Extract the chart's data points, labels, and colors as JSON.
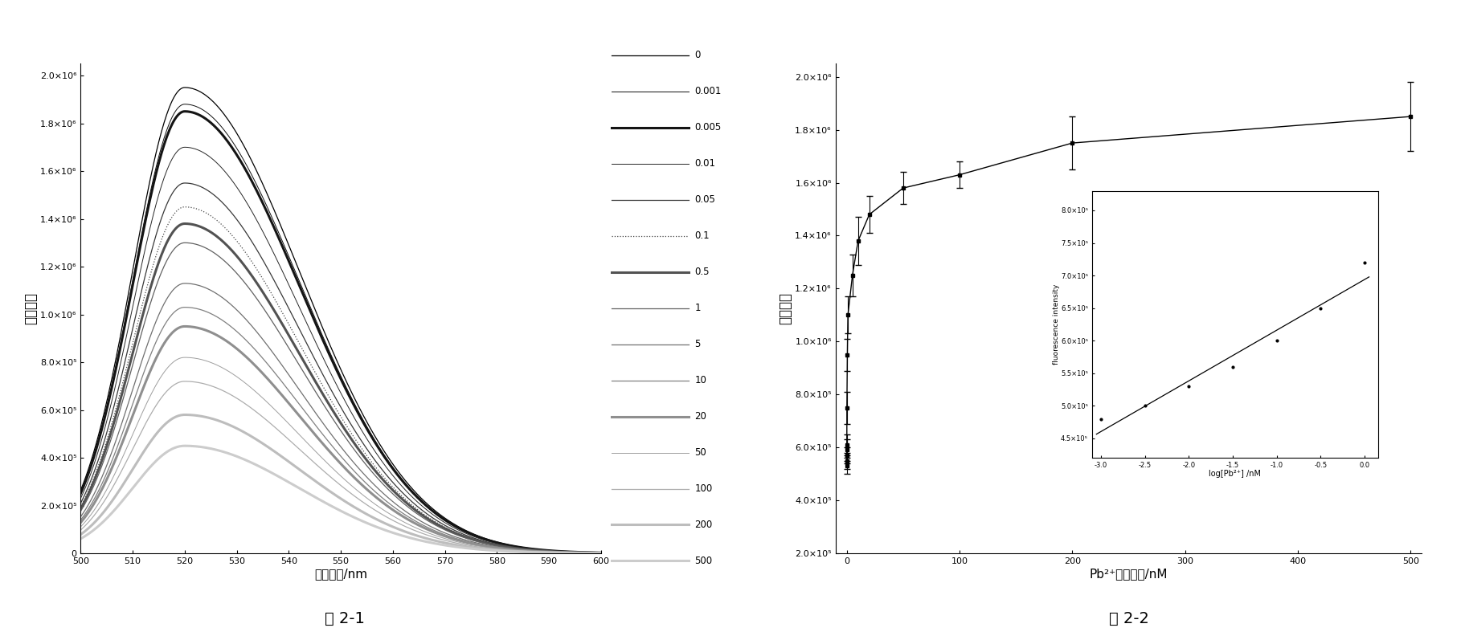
{
  "fig1_title": "图 2-1",
  "fig2_title": "图 2-2",
  "xlabel1": "荧光波长/nm",
  "ylabel1": "荧光强度",
  "xlabel2": "Pb²⁺离子浓度/nM",
  "ylabel2": "荧光强度",
  "legend_labels": [
    "0",
    "0.001",
    "0.005",
    "0.01",
    "0.05",
    "0.1",
    "0.5",
    "1",
    "5",
    "10",
    "20",
    "50",
    "100",
    "200",
    "500"
  ],
  "peak_values": [
    1950000.0,
    1880000.0,
    1850000.0,
    1700000.0,
    1550000.0,
    1450000.0,
    1380000.0,
    1300000.0,
    1130000.0,
    1030000.0,
    950000.0,
    820000.0,
    720000.0,
    580000.0,
    450000.0
  ],
  "y1ticks": [
    0.0,
    200000.0,
    400000.0,
    600000.0,
    800000.0,
    1000000.0,
    1200000.0,
    1400000.0,
    1600000.0,
    1800000.0,
    2000000.0
  ],
  "y1tick_labels": [
    "0",
    "2.0×10⁵",
    "4.0×10⁵",
    "6.0×10⁵",
    "8.0×10⁵",
    "1.0×10⁶",
    "1.2×10⁶",
    "1.4×10⁶",
    "1.6×10⁶",
    "1.8×10⁶",
    "2.0×10⁶"
  ],
  "y2ticks": [
    200000.0,
    400000.0,
    600000.0,
    800000.0,
    1000000.0,
    1200000.0,
    1400000.0,
    1600000.0,
    1800000.0,
    2000000.0
  ],
  "y2tick_labels": [
    "2.0×10⁵",
    "4.0×10⁵",
    "6.0×10⁵",
    "8.0×10⁵",
    "1.0×10⁶",
    "1.2×10⁶",
    "1.4×10⁶",
    "1.6×10⁶",
    "1.8×10⁶",
    "2.0×10⁶"
  ],
  "conc_points": [
    0,
    0.001,
    0.005,
    0.01,
    0.05,
    0.1,
    0.5,
    1,
    5,
    10,
    20,
    50,
    100,
    200,
    500
  ],
  "flu_values": [
    530000.0,
    550000.0,
    570000.0,
    590000.0,
    610000.0,
    750000.0,
    950000.0,
    1100000.0,
    1250000.0,
    1380000.0,
    1480000.0,
    1580000.0,
    1630000.0,
    1750000.0,
    1850000.0
  ],
  "flu_errors": [
    30000.0,
    30000.0,
    30000.0,
    40000.0,
    40000.0,
    60000.0,
    60000.0,
    70000.0,
    80000.0,
    90000.0,
    70000.0,
    60000.0,
    50000.0,
    100000.0,
    130000.0
  ],
  "inset_log_x": [
    -3.0,
    -2.5,
    -2.0,
    -1.5,
    -1.0,
    -0.5,
    0.0
  ],
  "inset_flu_y": [
    480000.0,
    500000.0,
    530000.0,
    560000.0,
    600000.0,
    650000.0,
    720000.0
  ],
  "inset_xlabel": "log[Pb²⁺] /nM",
  "inset_ylabel": "fluorescence intensity",
  "inset_ytick_vals": [
    450000.0,
    500000.0,
    550000.0,
    600000.0,
    650000.0,
    700000.0,
    750000.0,
    800000.0
  ],
  "inset_ytick_labels": [
    "4.5×10⁵",
    "5.0×10⁵",
    "5.5×10⁵",
    "6.0×10⁵",
    "6.5×10⁵",
    "7.0×10⁵",
    "7.5×10⁵",
    "8.0×10⁵"
  ],
  "line_styles": [
    [
      "solid",
      0.9
    ],
    [
      "solid",
      0.7
    ],
    [
      "solid",
      2.2
    ],
    [
      "solid",
      0.7
    ],
    [
      "solid",
      0.9
    ],
    [
      "dotted",
      0.9
    ],
    [
      "solid",
      2.2
    ],
    [
      "solid",
      0.9
    ],
    [
      "solid",
      0.9
    ],
    [
      "solid",
      0.9
    ],
    [
      "solid",
      2.2
    ],
    [
      "solid",
      0.7
    ],
    [
      "solid",
      0.9
    ],
    [
      "solid",
      2.2
    ],
    [
      "solid",
      2.2
    ]
  ],
  "line_colors": [
    "0.0",
    "0.05",
    "0.08",
    "0.15",
    "0.22",
    "0.28",
    "0.32",
    "0.38",
    "0.44",
    "0.50",
    "0.56",
    "0.62",
    "0.68",
    "0.74",
    "0.80"
  ]
}
